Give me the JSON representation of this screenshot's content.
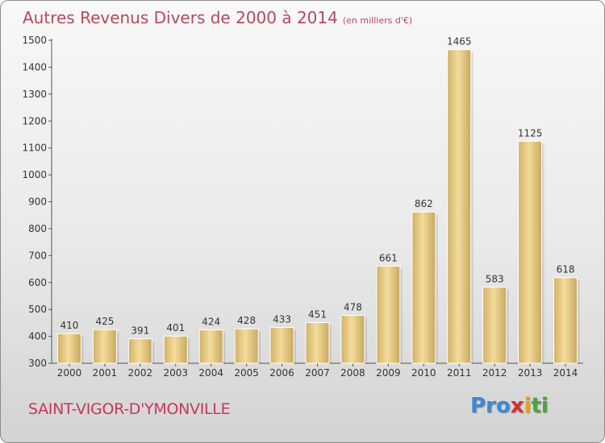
{
  "header": {
    "title": "Autres Revenus Divers de 2000 à 2014",
    "subtitle": "(en milliers d'€)"
  },
  "footer": {
    "commune": "SAINT-VIGOR-D'YMONVILLE",
    "logo": {
      "p1": "Pro",
      "p2": "x",
      "p3": "i",
      "p4": "ti"
    }
  },
  "chart_data": {
    "type": "bar",
    "title": "Autres Revenus Divers de 2000 à 2014",
    "subtitle": "(en milliers d'€)",
    "xlabel": "",
    "ylabel": "",
    "categories": [
      "2000",
      "2001",
      "2002",
      "2003",
      "2004",
      "2005",
      "2006",
      "2007",
      "2008",
      "2009",
      "2010",
      "2011",
      "2012",
      "2013",
      "2014"
    ],
    "values": [
      410,
      425,
      391,
      401,
      424,
      428,
      433,
      451,
      478,
      661,
      862,
      1465,
      583,
      1125,
      618
    ],
    "ylim": [
      300,
      1500
    ],
    "yticks": [
      300,
      400,
      500,
      600,
      700,
      800,
      900,
      1000,
      1100,
      1200,
      1300,
      1400,
      1500
    ],
    "grid": false,
    "bar_color": "#e2c57d"
  }
}
